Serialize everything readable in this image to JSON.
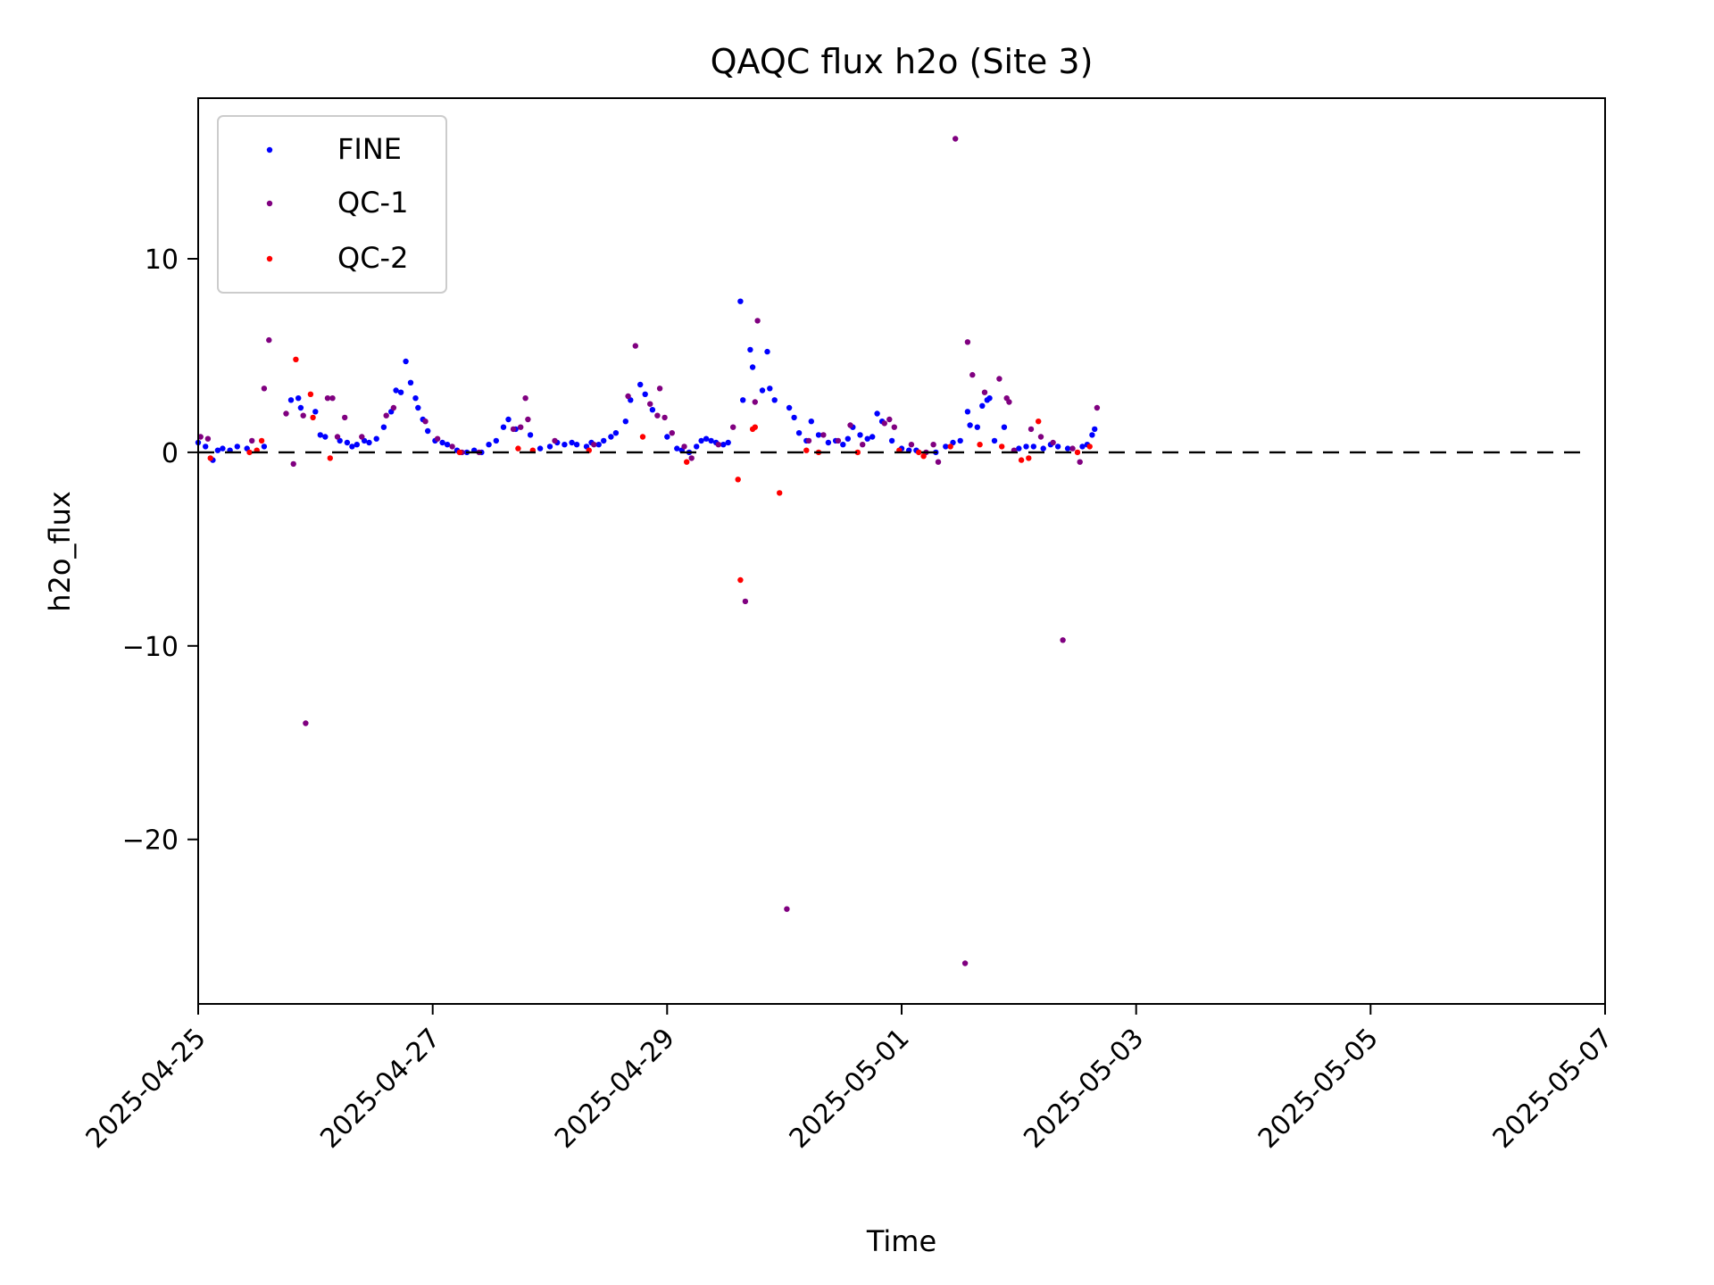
{
  "chart_data": {
    "type": "scatter",
    "title": "QAQC flux h2o (Site 3)",
    "xlabel": "Time",
    "ylabel": "h2o_flux",
    "x_type": "date",
    "xlim": [
      "2025-04-25",
      "2025-05-07"
    ],
    "ylim": [
      -28.5,
      18.3
    ],
    "x_ticks": [
      "2025-04-25",
      "2025-04-27",
      "2025-04-29",
      "2025-05-01",
      "2025-05-03",
      "2025-05-05",
      "2025-05-07"
    ],
    "y_ticks": [
      -20,
      -10,
      0,
      10
    ],
    "y_tick_labels": [
      "−20",
      "−10",
      "0",
      "10"
    ],
    "reference_line": {
      "y": 0,
      "style": "dashed",
      "color": "#000000"
    },
    "legend": {
      "position": "upper-left",
      "entries": [
        "FINE",
        "QC-1",
        "QC-2"
      ]
    },
    "grid": false,
    "series": [
      {
        "name": "FINE",
        "color": "#0000ff",
        "points": [
          [
            "2025-04-25T00:00",
            0.5
          ],
          [
            "2025-04-25T01:30",
            0.3
          ],
          [
            "2025-04-25T03:00",
            -0.4
          ],
          [
            "2025-04-25T04:00",
            0.1
          ],
          [
            "2025-04-25T05:00",
            0.2
          ],
          [
            "2025-04-25T06:30",
            0.1
          ],
          [
            "2025-04-25T08:00",
            0.3
          ],
          [
            "2025-04-25T10:00",
            0.2
          ],
          [
            "2025-04-25T13:30",
            0.3
          ],
          [
            "2025-04-25T19:00",
            2.7
          ],
          [
            "2025-04-25T20:30",
            2.8
          ],
          [
            "2025-04-25T21:00",
            2.3
          ],
          [
            "2025-04-26T00:00",
            2.1
          ],
          [
            "2025-04-26T01:00",
            0.9
          ],
          [
            "2025-04-26T02:00",
            0.8
          ],
          [
            "2025-04-26T05:00",
            0.6
          ],
          [
            "2025-04-26T06:30",
            0.5
          ],
          [
            "2025-04-26T07:30",
            0.3
          ],
          [
            "2025-04-26T08:30",
            0.4
          ],
          [
            "2025-04-26T10:00",
            0.6
          ],
          [
            "2025-04-26T11:00",
            0.5
          ],
          [
            "2025-04-26T12:30",
            0.7
          ],
          [
            "2025-04-26T14:00",
            1.3
          ],
          [
            "2025-04-26T15:30",
            2.1
          ],
          [
            "2025-04-26T16:30",
            3.2
          ],
          [
            "2025-04-26T17:30",
            3.1
          ],
          [
            "2025-04-26T18:30",
            4.7
          ],
          [
            "2025-04-26T19:30",
            3.6
          ],
          [
            "2025-04-26T20:30",
            2.8
          ],
          [
            "2025-04-26T21:00",
            2.3
          ],
          [
            "2025-04-26T22:00",
            1.7
          ],
          [
            "2025-04-26T23:00",
            1.1
          ],
          [
            "2025-04-27T00:30",
            0.6
          ],
          [
            "2025-04-27T02:00",
            0.5
          ],
          [
            "2025-04-27T03:00",
            0.4
          ],
          [
            "2025-04-27T05:00",
            0.1
          ],
          [
            "2025-04-27T07:00",
            0.0
          ],
          [
            "2025-04-27T08:30",
            0.1
          ],
          [
            "2025-04-27T10:00",
            0.0
          ],
          [
            "2025-04-27T11:30",
            0.4
          ],
          [
            "2025-04-27T13:00",
            0.6
          ],
          [
            "2025-04-27T14:30",
            1.3
          ],
          [
            "2025-04-27T15:30",
            1.7
          ],
          [
            "2025-04-27T17:00",
            1.2
          ],
          [
            "2025-04-27T20:00",
            0.9
          ],
          [
            "2025-04-27T22:00",
            0.2
          ],
          [
            "2025-04-28T00:00",
            0.3
          ],
          [
            "2025-04-28T01:30",
            0.5
          ],
          [
            "2025-04-28T03:00",
            0.4
          ],
          [
            "2025-04-28T04:30",
            0.5
          ],
          [
            "2025-04-28T05:30",
            0.4
          ],
          [
            "2025-04-28T07:30",
            0.3
          ],
          [
            "2025-04-28T08:30",
            0.5
          ],
          [
            "2025-04-28T10:00",
            0.4
          ],
          [
            "2025-04-28T11:00",
            0.6
          ],
          [
            "2025-04-28T12:30",
            0.8
          ],
          [
            "2025-04-28T13:30",
            1.0
          ],
          [
            "2025-04-28T15:30",
            1.6
          ],
          [
            "2025-04-28T16:30",
            2.7
          ],
          [
            "2025-04-28T18:30",
            3.5
          ],
          [
            "2025-04-28T19:30",
            3.0
          ],
          [
            "2025-04-28T21:00",
            2.2
          ],
          [
            "2025-04-29T00:00",
            0.8
          ],
          [
            "2025-04-29T02:00",
            0.2
          ],
          [
            "2025-04-29T03:00",
            0.1
          ],
          [
            "2025-04-29T04:30",
            0.0
          ],
          [
            "2025-04-29T06:00",
            0.3
          ],
          [
            "2025-04-29T07:00",
            0.6
          ],
          [
            "2025-04-29T08:00",
            0.7
          ],
          [
            "2025-04-29T09:00",
            0.6
          ],
          [
            "2025-04-29T10:00",
            0.5
          ],
          [
            "2025-04-29T11:30",
            0.4
          ],
          [
            "2025-04-29T12:30",
            0.5
          ],
          [
            "2025-04-29T15:00",
            7.8
          ],
          [
            "2025-04-29T15:30",
            2.7
          ],
          [
            "2025-04-29T17:00",
            5.3
          ],
          [
            "2025-04-29T17:30",
            4.4
          ],
          [
            "2025-04-29T19:30",
            3.2
          ],
          [
            "2025-04-29T21:00",
            3.3
          ],
          [
            "2025-04-29T22:00",
            2.7
          ],
          [
            "2025-04-29T20:30",
            5.2
          ],
          [
            "2025-04-30T01:00",
            2.3
          ],
          [
            "2025-04-30T02:00",
            1.8
          ],
          [
            "2025-04-30T03:00",
            1.0
          ],
          [
            "2025-04-30T04:30",
            0.6
          ],
          [
            "2025-04-30T05:30",
            1.6
          ],
          [
            "2025-04-30T07:00",
            0.9
          ],
          [
            "2025-04-30T09:00",
            0.5
          ],
          [
            "2025-04-30T10:30",
            0.6
          ],
          [
            "2025-04-30T12:00",
            0.4
          ],
          [
            "2025-04-30T13:00",
            0.7
          ],
          [
            "2025-04-30T14:00",
            1.3
          ],
          [
            "2025-04-30T15:30",
            0.9
          ],
          [
            "2025-04-30T17:00",
            0.7
          ],
          [
            "2025-04-30T18:00",
            0.8
          ],
          [
            "2025-04-30T19:00",
            2.0
          ],
          [
            "2025-04-30T20:00",
            1.6
          ],
          [
            "2025-04-30T22:00",
            0.6
          ],
          [
            "2025-05-01T00:00",
            0.2
          ],
          [
            "2025-05-01T01:30",
            0.1
          ],
          [
            "2025-05-01T03:00",
            0.1
          ],
          [
            "2025-05-01T07:00",
            0.0
          ],
          [
            "2025-05-01T09:00",
            0.3
          ],
          [
            "2025-05-01T10:30",
            0.5
          ],
          [
            "2025-05-01T12:00",
            0.6
          ],
          [
            "2025-05-01T13:30",
            2.1
          ],
          [
            "2025-05-01T14:00",
            1.4
          ],
          [
            "2025-05-01T15:30",
            1.3
          ],
          [
            "2025-05-01T16:30",
            2.4
          ],
          [
            "2025-05-01T17:30",
            2.7
          ],
          [
            "2025-05-01T18:00",
            2.8
          ],
          [
            "2025-05-01T19:00",
            0.6
          ],
          [
            "2025-05-01T21:00",
            1.3
          ],
          [
            "2025-05-02T00:00",
            0.2
          ],
          [
            "2025-05-02T01:30",
            0.3
          ],
          [
            "2025-05-02T03:00",
            0.3
          ],
          [
            "2025-05-02T05:00",
            0.2
          ],
          [
            "2025-05-02T06:30",
            0.4
          ],
          [
            "2025-05-02T08:00",
            0.3
          ],
          [
            "2025-05-02T10:00",
            0.2
          ],
          [
            "2025-05-02T13:00",
            0.3
          ],
          [
            "2025-05-02T14:00",
            0.4
          ],
          [
            "2025-05-02T15:00",
            0.9
          ],
          [
            "2025-05-02T15:30",
            1.2
          ]
        ]
      },
      {
        "name": "QC-1",
        "color": "#800080",
        "points": [
          [
            "2025-04-25T00:30",
            0.8
          ],
          [
            "2025-04-25T02:00",
            0.7
          ],
          [
            "2025-04-25T11:00",
            0.6
          ],
          [
            "2025-04-25T13:30",
            3.3
          ],
          [
            "2025-04-25T14:30",
            5.8
          ],
          [
            "2025-04-25T18:00",
            2.0
          ],
          [
            "2025-04-25T19:30",
            -0.6
          ],
          [
            "2025-04-25T21:30",
            1.9
          ],
          [
            "2025-04-25T22:00",
            -14.0
          ],
          [
            "2025-04-26T02:30",
            2.8
          ],
          [
            "2025-04-26T03:30",
            2.8
          ],
          [
            "2025-04-26T04:30",
            0.8
          ],
          [
            "2025-04-26T06:00",
            1.8
          ],
          [
            "2025-04-26T09:30",
            0.8
          ],
          [
            "2025-04-26T16:00",
            2.3
          ],
          [
            "2025-04-26T14:30",
            1.9
          ],
          [
            "2025-04-26T22:30",
            1.6
          ],
          [
            "2025-04-27T01:00",
            0.7
          ],
          [
            "2025-04-27T04:00",
            0.3
          ],
          [
            "2025-04-27T06:00",
            0.0
          ],
          [
            "2025-04-27T09:30",
            0.0
          ],
          [
            "2025-04-27T16:30",
            1.2
          ],
          [
            "2025-04-27T18:00",
            1.3
          ],
          [
            "2025-04-27T19:00",
            2.8
          ],
          [
            "2025-04-27T19:30",
            1.7
          ],
          [
            "2025-04-28T01:00",
            0.6
          ],
          [
            "2025-04-28T09:00",
            0.4
          ],
          [
            "2025-04-28T16:00",
            2.9
          ],
          [
            "2025-04-28T17:30",
            5.5
          ],
          [
            "2025-04-28T20:30",
            2.5
          ],
          [
            "2025-04-28T22:00",
            1.9
          ],
          [
            "2025-04-28T22:30",
            3.3
          ],
          [
            "2025-04-28T23:30",
            1.8
          ],
          [
            "2025-04-29T01:00",
            1.0
          ],
          [
            "2025-04-29T03:30",
            0.3
          ],
          [
            "2025-04-29T05:00",
            -0.3
          ],
          [
            "2025-04-29T10:30",
            0.4
          ],
          [
            "2025-04-29T13:30",
            1.3
          ],
          [
            "2025-04-29T16:00",
            -7.7
          ],
          [
            "2025-04-29T18:00",
            2.6
          ],
          [
            "2025-04-29T18:30",
            6.8
          ],
          [
            "2025-04-30T00:30",
            -23.6
          ],
          [
            "2025-04-30T05:00",
            0.6
          ],
          [
            "2025-04-30T08:00",
            0.9
          ],
          [
            "2025-04-30T11:00",
            0.6
          ],
          [
            "2025-04-30T13:30",
            1.4
          ],
          [
            "2025-04-30T16:00",
            0.4
          ],
          [
            "2025-04-30T20:30",
            1.5
          ],
          [
            "2025-04-30T21:30",
            1.7
          ],
          [
            "2025-04-30T22:30",
            1.3
          ],
          [
            "2025-05-01T02:00",
            0.4
          ],
          [
            "2025-05-01T05:00",
            0.0
          ],
          [
            "2025-05-01T06:30",
            0.4
          ],
          [
            "2025-05-01T07:30",
            -0.5
          ],
          [
            "2025-05-01T11:00",
            16.2
          ],
          [
            "2025-05-01T13:00",
            -26.4
          ],
          [
            "2025-05-01T13:30",
            5.7
          ],
          [
            "2025-05-01T14:30",
            4.0
          ],
          [
            "2025-05-01T17:00",
            3.1
          ],
          [
            "2025-05-01T20:00",
            3.8
          ],
          [
            "2025-05-01T21:30",
            2.8
          ],
          [
            "2025-05-01T22:00",
            2.6
          ],
          [
            "2025-05-01T23:00",
            0.1
          ],
          [
            "2025-05-02T02:30",
            1.2
          ],
          [
            "2025-05-02T04:30",
            0.8
          ],
          [
            "2025-05-02T07:00",
            0.5
          ],
          [
            "2025-05-02T09:00",
            -9.7
          ],
          [
            "2025-05-02T11:00",
            0.2
          ],
          [
            "2025-05-02T12:30",
            -0.5
          ],
          [
            "2025-05-02T16:00",
            2.3
          ]
        ]
      },
      {
        "name": "QC-2",
        "color": "#ff0000",
        "points": [
          [
            "2025-04-25T02:30",
            -0.3
          ],
          [
            "2025-04-25T10:30",
            0.0
          ],
          [
            "2025-04-25T12:00",
            0.1
          ],
          [
            "2025-04-25T13:00",
            0.6
          ],
          [
            "2025-04-25T20:00",
            4.8
          ],
          [
            "2025-04-25T23:00",
            3.0
          ],
          [
            "2025-04-25T23:30",
            1.8
          ],
          [
            "2025-04-26T03:00",
            -0.3
          ],
          [
            "2025-04-27T05:30",
            0.0
          ],
          [
            "2025-04-27T17:30",
            0.2
          ],
          [
            "2025-04-27T20:30",
            0.1
          ],
          [
            "2025-04-28T08:00",
            0.1
          ],
          [
            "2025-04-28T19:00",
            0.8
          ],
          [
            "2025-04-29T04:00",
            -0.5
          ],
          [
            "2025-04-29T14:30",
            -1.4
          ],
          [
            "2025-04-29T15:00",
            -6.6
          ],
          [
            "2025-04-29T17:30",
            1.2
          ],
          [
            "2025-04-29T18:00",
            1.3
          ],
          [
            "2025-04-29T23:00",
            -2.1
          ],
          [
            "2025-04-30T04:30",
            0.1
          ],
          [
            "2025-04-30T07:00",
            0.0
          ],
          [
            "2025-04-30T15:00",
            0.0
          ],
          [
            "2025-04-30T23:30",
            0.1
          ],
          [
            "2025-05-01T03:30",
            0.0
          ],
          [
            "2025-05-01T04:30",
            -0.2
          ],
          [
            "2025-05-01T10:00",
            0.3
          ],
          [
            "2025-05-01T16:00",
            0.4
          ],
          [
            "2025-05-01T20:30",
            0.3
          ],
          [
            "2025-05-02T00:30",
            -0.4
          ],
          [
            "2025-05-02T02:00",
            -0.3
          ],
          [
            "2025-05-02T04:00",
            1.6
          ],
          [
            "2025-05-02T12:00",
            0.0
          ],
          [
            "2025-05-02T14:30",
            0.3
          ]
        ]
      }
    ]
  }
}
